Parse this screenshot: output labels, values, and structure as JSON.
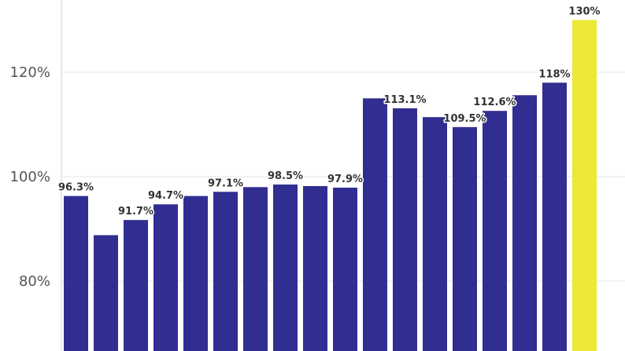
{
  "chart_data": {
    "type": "bar",
    "title": "",
    "xlabel": "",
    "ylabel": "",
    "ylim": [
      65,
      133
    ],
    "yticks": [
      80,
      100,
      120
    ],
    "ytick_labels": [
      "80%",
      "100%",
      "120%"
    ],
    "grid": true,
    "bar_color": "#312e91",
    "highlight_color": "#ebe935",
    "values": [
      96.3,
      88.8,
      91.7,
      94.7,
      96.3,
      97.1,
      98.0,
      98.5,
      98.2,
      97.9,
      115.0,
      113.1,
      111.4,
      109.5,
      112.6,
      115.6,
      118.0,
      130.0
    ],
    "labels": [
      "96.3%",
      "",
      "91.7%",
      "94.7%",
      "",
      "97.1%",
      "",
      "98.5%",
      "",
      "97.9%",
      "",
      "113.1%",
      "",
      "109.5%",
      "112.6%",
      "",
      "118%",
      "130%"
    ],
    "highlight_index": 17
  }
}
